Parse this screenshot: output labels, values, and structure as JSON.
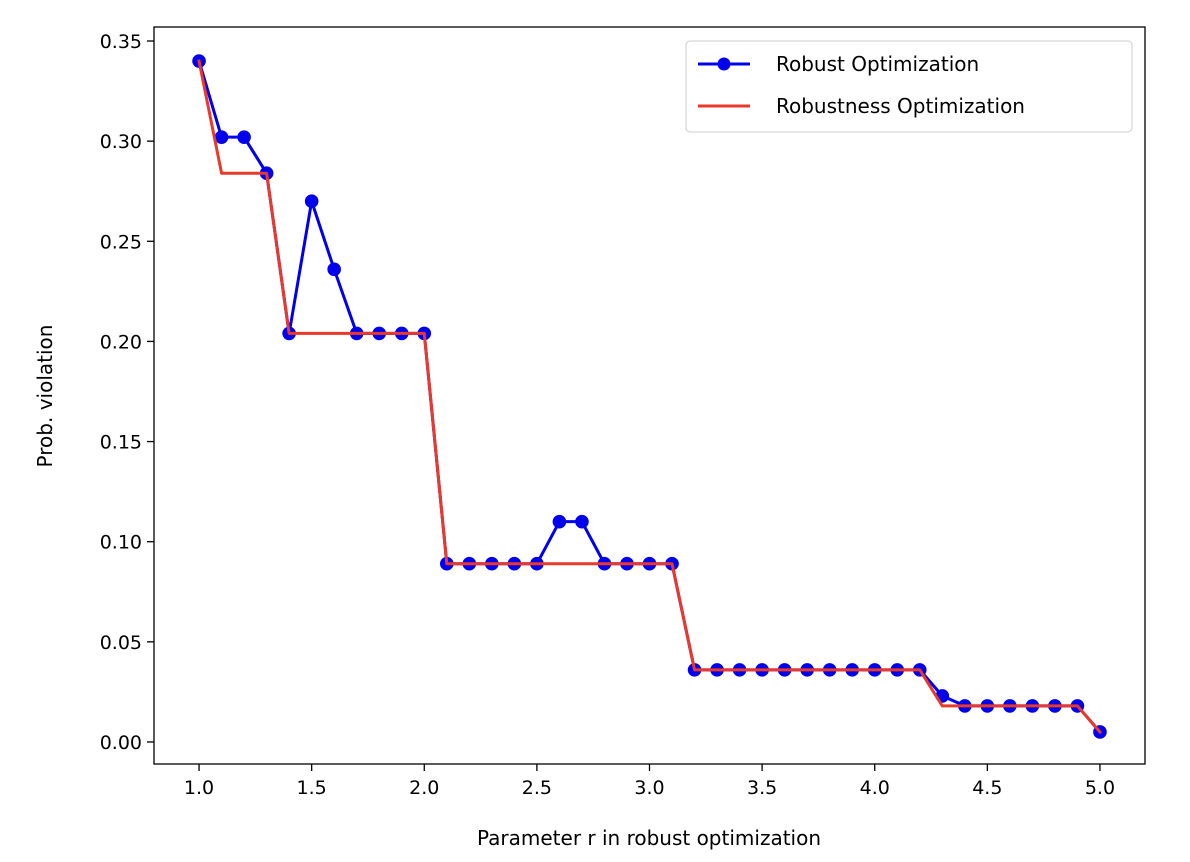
{
  "chart_data": {
    "type": "line",
    "xlabel": "Parameter r in robust optimization",
    "ylabel": "Prob. violation",
    "xlim": [
      0.8,
      5.2
    ],
    "ylim": [
      -0.011,
      0.357
    ],
    "xticks": [
      1.0,
      1.5,
      2.0,
      2.5,
      3.0,
      3.5,
      4.0,
      4.5,
      5.0
    ],
    "xtick_labels": [
      "1.0",
      "1.5",
      "2.0",
      "2.5",
      "3.0",
      "3.5",
      "4.0",
      "4.5",
      "5.0"
    ],
    "yticks": [
      0.0,
      0.05,
      0.1,
      0.15,
      0.2,
      0.25,
      0.3,
      0.35
    ],
    "ytick_labels": [
      "0.00",
      "0.05",
      "0.10",
      "0.15",
      "0.20",
      "0.25",
      "0.30",
      "0.35"
    ],
    "grid": false,
    "legend": "top-right",
    "x": [
      1.0,
      1.1,
      1.2,
      1.3,
      1.4,
      1.5,
      1.6,
      1.7,
      1.8,
      1.9,
      2.0,
      2.1,
      2.2,
      2.3,
      2.4,
      2.5,
      2.6,
      2.7,
      2.8,
      2.9,
      3.0,
      3.1,
      3.2,
      3.3,
      3.4,
      3.5,
      3.6,
      3.7,
      3.8,
      3.9,
      4.0,
      4.1,
      4.2,
      4.3,
      4.4,
      4.5,
      4.6,
      4.7,
      4.8,
      4.9,
      5.0
    ],
    "series": [
      {
        "name": "Robust Optimization",
        "color": "#0000ee",
        "marker": "circle",
        "values": [
          0.34,
          0.302,
          0.302,
          0.284,
          0.204,
          0.27,
          0.236,
          0.204,
          0.204,
          0.204,
          0.204,
          0.089,
          0.089,
          0.089,
          0.089,
          0.089,
          0.11,
          0.11,
          0.089,
          0.089,
          0.089,
          0.089,
          0.036,
          0.036,
          0.036,
          0.036,
          0.036,
          0.036,
          0.036,
          0.036,
          0.036,
          0.036,
          0.036,
          0.023,
          0.018,
          0.018,
          0.018,
          0.018,
          0.018,
          0.018,
          0.005
        ]
      },
      {
        "name": "Robustness Optimization",
        "color": "#e8392a",
        "marker": "none",
        "values": [
          0.34,
          0.284,
          0.284,
          0.284,
          0.204,
          0.204,
          0.204,
          0.204,
          0.204,
          0.204,
          0.204,
          0.089,
          0.089,
          0.089,
          0.089,
          0.089,
          0.089,
          0.089,
          0.089,
          0.089,
          0.089,
          0.089,
          0.036,
          0.036,
          0.036,
          0.036,
          0.036,
          0.036,
          0.036,
          0.036,
          0.036,
          0.036,
          0.036,
          0.018,
          0.018,
          0.018,
          0.018,
          0.018,
          0.018,
          0.018,
          0.005
        ]
      }
    ]
  }
}
